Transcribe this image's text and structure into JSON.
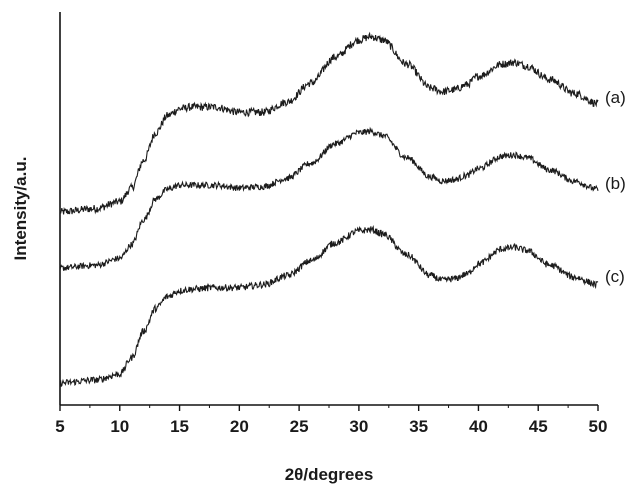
{
  "chart_data": {
    "type": "line",
    "xlabel": "2θ/degrees",
    "ylabel": "Intensity/a.u.",
    "xlim": [
      5,
      50
    ],
    "xticks": [
      5,
      10,
      15,
      20,
      25,
      30,
      35,
      40,
      45,
      50
    ],
    "y_ticks_shown": false,
    "y_units": "arbitrary (stacked curves, relative intensity)",
    "grid": false,
    "legend": "none; labels at right end of each curve",
    "series": [
      {
        "name": "(a)",
        "x": [
          5,
          8,
          10,
          11,
          12,
          13,
          14,
          15,
          16,
          18,
          20,
          22,
          24,
          26,
          28,
          30,
          31,
          32,
          34,
          36,
          37,
          38,
          39,
          40,
          42,
          43,
          44,
          46,
          48,
          50
        ],
        "y": [
          0.0,
          0.02,
          0.06,
          0.14,
          0.3,
          0.46,
          0.56,
          0.6,
          0.61,
          0.61,
          0.58,
          0.58,
          0.64,
          0.75,
          0.9,
          1.0,
          1.02,
          1.0,
          0.86,
          0.72,
          0.7,
          0.71,
          0.74,
          0.79,
          0.86,
          0.87,
          0.85,
          0.77,
          0.69,
          0.63
        ]
      },
      {
        "name": "(b)",
        "x": [
          5,
          8,
          10,
          11,
          12,
          13,
          14,
          15,
          16,
          18,
          20,
          22,
          24,
          26,
          28,
          30,
          31,
          32,
          34,
          36,
          37,
          38,
          39,
          40,
          42,
          43,
          44,
          46,
          48,
          50
        ],
        "y": [
          0.0,
          0.02,
          0.07,
          0.17,
          0.35,
          0.5,
          0.57,
          0.6,
          0.6,
          0.6,
          0.58,
          0.59,
          0.65,
          0.76,
          0.9,
          0.98,
          0.99,
          0.96,
          0.8,
          0.66,
          0.63,
          0.64,
          0.67,
          0.72,
          0.81,
          0.82,
          0.8,
          0.71,
          0.63,
          0.57
        ]
      },
      {
        "name": "(c)",
        "x": [
          5,
          8,
          10,
          11,
          12,
          13,
          14,
          15,
          16,
          18,
          20,
          22,
          24,
          26,
          28,
          30,
          31,
          32,
          34,
          36,
          37,
          38,
          39,
          40,
          42,
          43,
          44,
          46,
          48,
          50
        ],
        "y": [
          0.0,
          0.02,
          0.06,
          0.17,
          0.35,
          0.5,
          0.58,
          0.62,
          0.63,
          0.64,
          0.64,
          0.66,
          0.72,
          0.82,
          0.94,
          1.02,
          1.03,
          1.0,
          0.86,
          0.72,
          0.69,
          0.7,
          0.73,
          0.8,
          0.9,
          0.91,
          0.89,
          0.79,
          0.71,
          0.66
        ]
      }
    ]
  }
}
